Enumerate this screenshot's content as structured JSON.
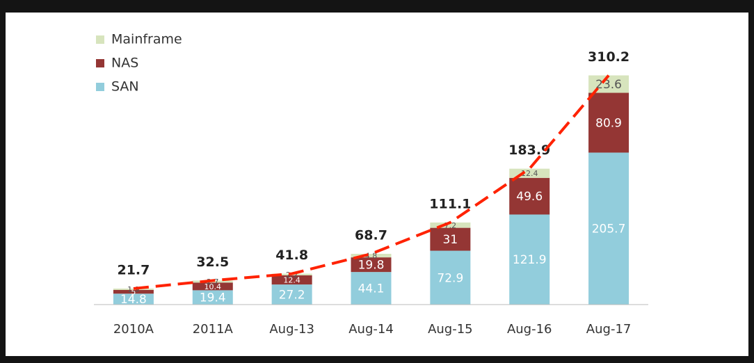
{
  "chart_data": {
    "type": "stacked_bar",
    "categories": [
      "2010A",
      "2011A",
      "Aug-13",
      "Aug-14",
      "Aug-15",
      "Aug-16",
      "Aug-17"
    ],
    "series": [
      {
        "name": "SAN",
        "color": "#92cddc",
        "values": [
          14.8,
          19.4,
          27.2,
          44.1,
          72.9,
          121.9,
          205.7
        ]
      },
      {
        "name": "NAS",
        "color": "#943634",
        "values": [
          5.0,
          10.4,
          12.4,
          19.8,
          31.0,
          49.6,
          80.9
        ]
      },
      {
        "name": "Mainframe",
        "color": "#d7e4bd",
        "values": [
          1.9,
          2.7,
          2.2,
          4.8,
          7.2,
          12.4,
          23.6
        ]
      }
    ],
    "totals": [
      21.7,
      32.5,
      41.8,
      68.7,
      111.1,
      183.9,
      310.2
    ],
    "line_color": "#ff2200",
    "ylim": [
      0,
      320
    ]
  }
}
